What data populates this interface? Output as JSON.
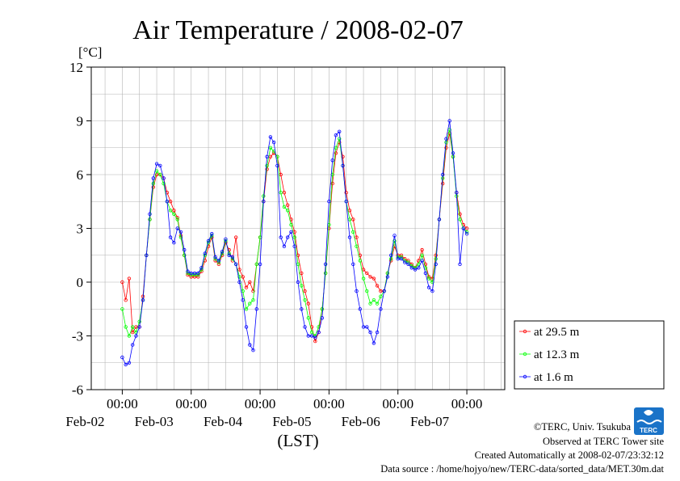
{
  "chart_data": {
    "type": "line",
    "title": "Air Temperature / 2008-02-07",
    "ylabel": "[°C]",
    "xlabel": "(LST)",
    "ylim": [
      -6,
      12
    ],
    "xlim": [
      0,
      6
    ],
    "yticks": [
      -6,
      -3,
      0,
      3,
      6,
      9,
      12
    ],
    "x_ticks": [
      {
        "x": 1,
        "time": "00:00",
        "date": "Feb-02"
      },
      {
        "x": 2,
        "time": "00:00",
        "date": "Feb-03"
      },
      {
        "x": 3,
        "time": "00:00",
        "date": "Feb-04"
      },
      {
        "x": 4,
        "time": "00:00",
        "date": "Feb-05"
      },
      {
        "x": 5,
        "time": "00:00",
        "date": "Feb-06"
      },
      {
        "x": 6,
        "time": "00:00",
        "date": "Feb-07"
      }
    ],
    "x_unit": "days from 2008-02-01 00:00 LST",
    "grid": true,
    "legend_position": "right",
    "series": [
      {
        "name": "at 29.5 m",
        "color": "#ff0000",
        "points": [
          [
            0.0,
            0.0
          ],
          [
            0.05,
            -1.0
          ],
          [
            0.1,
            0.2
          ],
          [
            0.15,
            -2.8
          ],
          [
            0.2,
            -2.5
          ],
          [
            0.25,
            -2.5
          ],
          [
            0.3,
            -0.8
          ],
          [
            0.35,
            1.5
          ],
          [
            0.4,
            3.5
          ],
          [
            0.45,
            5.3
          ],
          [
            0.5,
            6.0
          ],
          [
            0.55,
            6.0
          ],
          [
            0.6,
            5.8
          ],
          [
            0.65,
            5.0
          ],
          [
            0.7,
            4.5
          ],
          [
            0.75,
            4.0
          ],
          [
            0.8,
            3.6
          ],
          [
            0.85,
            2.6
          ],
          [
            0.9,
            1.5
          ],
          [
            0.95,
            0.4
          ],
          [
            1.0,
            0.3
          ],
          [
            1.05,
            0.3
          ],
          [
            1.1,
            0.3
          ],
          [
            1.15,
            0.6
          ],
          [
            1.2,
            1.2
          ],
          [
            1.25,
            2.0
          ],
          [
            1.3,
            2.5
          ],
          [
            1.35,
            1.2
          ],
          [
            1.4,
            1.0
          ],
          [
            1.45,
            1.5
          ],
          [
            1.5,
            2.2
          ],
          [
            1.55,
            1.8
          ],
          [
            1.6,
            1.2
          ],
          [
            1.65,
            2.5
          ],
          [
            1.7,
            0.7
          ],
          [
            1.75,
            0.3
          ],
          [
            1.8,
            -0.3
          ],
          [
            1.85,
            0.0
          ],
          [
            1.9,
            -0.5
          ],
          [
            1.95,
            1.0
          ],
          [
            2.0,
            2.5
          ],
          [
            2.05,
            4.5
          ],
          [
            2.1,
            6.3
          ],
          [
            2.15,
            7.0
          ],
          [
            2.2,
            7.2
          ],
          [
            2.25,
            7.0
          ],
          [
            2.3,
            6.0
          ],
          [
            2.35,
            5.0
          ],
          [
            2.4,
            4.3
          ],
          [
            2.45,
            3.5
          ],
          [
            2.5,
            2.8
          ],
          [
            2.55,
            1.5
          ],
          [
            2.6,
            0.5
          ],
          [
            2.65,
            -0.5
          ],
          [
            2.7,
            -1.2
          ],
          [
            2.75,
            -2.5
          ],
          [
            2.8,
            -3.3
          ],
          [
            2.85,
            -2.8
          ],
          [
            2.9,
            -1.5
          ],
          [
            2.95,
            0.5
          ],
          [
            3.0,
            3.0
          ],
          [
            3.05,
            5.5
          ],
          [
            3.1,
            7.2
          ],
          [
            3.15,
            7.8
          ],
          [
            3.2,
            7.0
          ],
          [
            3.25,
            5.0
          ],
          [
            3.3,
            4.0
          ],
          [
            3.35,
            3.5
          ],
          [
            3.4,
            2.5
          ],
          [
            3.45,
            1.5
          ],
          [
            3.5,
            0.7
          ],
          [
            3.55,
            0.5
          ],
          [
            3.6,
            0.3
          ],
          [
            3.65,
            0.2
          ],
          [
            3.7,
            -0.2
          ],
          [
            3.75,
            -0.5
          ],
          [
            3.8,
            -0.5
          ],
          [
            3.85,
            0.5
          ],
          [
            3.9,
            1.2
          ],
          [
            3.95,
            2.0
          ],
          [
            4.0,
            1.5
          ],
          [
            4.05,
            1.5
          ],
          [
            4.1,
            1.3
          ],
          [
            4.15,
            1.2
          ],
          [
            4.2,
            1.0
          ],
          [
            4.25,
            0.8
          ],
          [
            4.3,
            1.2
          ],
          [
            4.35,
            1.8
          ],
          [
            4.4,
            1.0
          ],
          [
            4.45,
            0.3
          ],
          [
            4.5,
            0.2
          ],
          [
            4.55,
            1.5
          ],
          [
            4.6,
            3.5
          ],
          [
            4.65,
            5.5
          ],
          [
            4.7,
            7.5
          ],
          [
            4.75,
            8.3
          ],
          [
            4.8,
            7.0
          ],
          [
            4.85,
            5.0
          ],
          [
            4.9,
            3.8
          ],
          [
            4.95,
            3.2
          ],
          [
            5.0,
            3.0
          ]
        ]
      },
      {
        "name": "at 12.3 m",
        "color": "#00ff00",
        "points": [
          [
            0.0,
            -1.5
          ],
          [
            0.05,
            -2.5
          ],
          [
            0.1,
            -3.0
          ],
          [
            0.15,
            -2.5
          ],
          [
            0.2,
            -2.8
          ],
          [
            0.25,
            -2.2
          ],
          [
            0.3,
            -1.0
          ],
          [
            0.35,
            1.5
          ],
          [
            0.4,
            3.5
          ],
          [
            0.45,
            5.5
          ],
          [
            0.5,
            6.2
          ],
          [
            0.55,
            6.0
          ],
          [
            0.6,
            5.5
          ],
          [
            0.65,
            4.5
          ],
          [
            0.7,
            4.0
          ],
          [
            0.75,
            3.8
          ],
          [
            0.8,
            3.5
          ],
          [
            0.85,
            2.5
          ],
          [
            0.9,
            1.5
          ],
          [
            0.95,
            0.5
          ],
          [
            1.0,
            0.4
          ],
          [
            1.05,
            0.4
          ],
          [
            1.1,
            0.4
          ],
          [
            1.15,
            0.7
          ],
          [
            1.2,
            1.5
          ],
          [
            1.25,
            2.2
          ],
          [
            1.3,
            2.6
          ],
          [
            1.35,
            1.3
          ],
          [
            1.4,
            1.1
          ],
          [
            1.45,
            1.6
          ],
          [
            1.5,
            2.3
          ],
          [
            1.55,
            1.6
          ],
          [
            1.6,
            1.3
          ],
          [
            1.65,
            1.0
          ],
          [
            1.7,
            0.3
          ],
          [
            1.75,
            -0.5
          ],
          [
            1.8,
            -1.5
          ],
          [
            1.85,
            -1.2
          ],
          [
            1.9,
            -1.0
          ],
          [
            1.95,
            1.0
          ],
          [
            2.0,
            2.5
          ],
          [
            2.05,
            4.8
          ],
          [
            2.1,
            6.5
          ],
          [
            2.15,
            7.5
          ],
          [
            2.2,
            7.3
          ],
          [
            2.25,
            7.0
          ],
          [
            2.3,
            5.0
          ],
          [
            2.35,
            4.2
          ],
          [
            2.4,
            4.0
          ],
          [
            2.45,
            3.2
          ],
          [
            2.5,
            2.5
          ],
          [
            2.55,
            1.0
          ],
          [
            2.6,
            -0.2
          ],
          [
            2.65,
            -1.0
          ],
          [
            2.7,
            -2.0
          ],
          [
            2.75,
            -2.8
          ],
          [
            2.8,
            -3.0
          ],
          [
            2.85,
            -2.5
          ],
          [
            2.9,
            -1.5
          ],
          [
            2.95,
            0.5
          ],
          [
            3.0,
            3.2
          ],
          [
            3.05,
            6.0
          ],
          [
            3.1,
            7.5
          ],
          [
            3.15,
            8.0
          ],
          [
            3.2,
            6.5
          ],
          [
            3.25,
            4.5
          ],
          [
            3.3,
            3.5
          ],
          [
            3.35,
            2.8
          ],
          [
            3.4,
            2.0
          ],
          [
            3.45,
            1.2
          ],
          [
            3.5,
            0.2
          ],
          [
            3.55,
            -0.5
          ],
          [
            3.6,
            -1.2
          ],
          [
            3.65,
            -1.0
          ],
          [
            3.7,
            -1.2
          ],
          [
            3.75,
            -0.8
          ],
          [
            3.8,
            -0.5
          ],
          [
            3.85,
            0.5
          ],
          [
            3.9,
            1.3
          ],
          [
            3.95,
            2.3
          ],
          [
            4.0,
            1.4
          ],
          [
            4.05,
            1.4
          ],
          [
            4.1,
            1.2
          ],
          [
            4.15,
            1.1
          ],
          [
            4.2,
            0.9
          ],
          [
            4.25,
            0.8
          ],
          [
            4.3,
            1.0
          ],
          [
            4.35,
            1.5
          ],
          [
            4.4,
            0.8
          ],
          [
            4.45,
            0.2
          ],
          [
            4.5,
            0.0
          ],
          [
            4.55,
            1.3
          ],
          [
            4.6,
            3.5
          ],
          [
            4.65,
            5.8
          ],
          [
            4.7,
            7.8
          ],
          [
            4.75,
            8.5
          ],
          [
            4.8,
            7.0
          ],
          [
            4.85,
            4.8
          ],
          [
            4.9,
            3.5
          ],
          [
            4.95,
            3.0
          ],
          [
            5.0,
            2.8
          ]
        ]
      },
      {
        "name": "at 1.6 m",
        "color": "#0000ff",
        "points": [
          [
            0.0,
            -4.2
          ],
          [
            0.05,
            -4.6
          ],
          [
            0.1,
            -4.5
          ],
          [
            0.15,
            -3.5
          ],
          [
            0.2,
            -3.0
          ],
          [
            0.25,
            -2.5
          ],
          [
            0.3,
            -1.0
          ],
          [
            0.35,
            1.5
          ],
          [
            0.4,
            3.8
          ],
          [
            0.45,
            5.8
          ],
          [
            0.5,
            6.6
          ],
          [
            0.55,
            6.5
          ],
          [
            0.6,
            5.8
          ],
          [
            0.65,
            4.5
          ],
          [
            0.7,
            2.5
          ],
          [
            0.75,
            2.2
          ],
          [
            0.8,
            3.0
          ],
          [
            0.85,
            2.8
          ],
          [
            0.9,
            1.8
          ],
          [
            0.95,
            0.6
          ],
          [
            1.0,
            0.5
          ],
          [
            1.05,
            0.5
          ],
          [
            1.1,
            0.5
          ],
          [
            1.15,
            0.8
          ],
          [
            1.2,
            1.6
          ],
          [
            1.25,
            2.3
          ],
          [
            1.3,
            2.7
          ],
          [
            1.35,
            1.4
          ],
          [
            1.4,
            1.2
          ],
          [
            1.45,
            1.7
          ],
          [
            1.5,
            2.4
          ],
          [
            1.55,
            1.5
          ],
          [
            1.6,
            1.4
          ],
          [
            1.65,
            1.0
          ],
          [
            1.7,
            0.0
          ],
          [
            1.75,
            -1.0
          ],
          [
            1.8,
            -2.5
          ],
          [
            1.85,
            -3.5
          ],
          [
            1.9,
            -3.8
          ],
          [
            1.95,
            -1.5
          ],
          [
            2.0,
            1.0
          ],
          [
            2.05,
            4.5
          ],
          [
            2.1,
            7.0
          ],
          [
            2.15,
            8.1
          ],
          [
            2.2,
            7.8
          ],
          [
            2.25,
            6.5
          ],
          [
            2.3,
            2.5
          ],
          [
            2.35,
            2.0
          ],
          [
            2.4,
            2.5
          ],
          [
            2.45,
            2.8
          ],
          [
            2.5,
            2.0
          ],
          [
            2.55,
            0.0
          ],
          [
            2.6,
            -1.5
          ],
          [
            2.65,
            -2.5
          ],
          [
            2.7,
            -3.0
          ],
          [
            2.75,
            -3.0
          ],
          [
            2.8,
            -3.1
          ],
          [
            2.85,
            -2.8
          ],
          [
            2.9,
            -2.0
          ],
          [
            2.95,
            1.0
          ],
          [
            3.0,
            4.5
          ],
          [
            3.05,
            6.8
          ],
          [
            3.1,
            8.2
          ],
          [
            3.15,
            8.4
          ],
          [
            3.2,
            6.5
          ],
          [
            3.25,
            4.5
          ],
          [
            3.3,
            2.5
          ],
          [
            3.35,
            1.0
          ],
          [
            3.4,
            -0.5
          ],
          [
            3.45,
            -1.5
          ],
          [
            3.5,
            -2.5
          ],
          [
            3.55,
            -2.5
          ],
          [
            3.6,
            -2.8
          ],
          [
            3.65,
            -3.4
          ],
          [
            3.7,
            -2.8
          ],
          [
            3.75,
            -1.5
          ],
          [
            3.8,
            -0.5
          ],
          [
            3.85,
            0.3
          ],
          [
            3.9,
            1.5
          ],
          [
            3.95,
            2.6
          ],
          [
            4.0,
            1.3
          ],
          [
            4.05,
            1.3
          ],
          [
            4.1,
            1.1
          ],
          [
            4.15,
            1.0
          ],
          [
            4.2,
            0.8
          ],
          [
            4.25,
            0.7
          ],
          [
            4.3,
            0.8
          ],
          [
            4.35,
            1.2
          ],
          [
            4.4,
            0.5
          ],
          [
            4.45,
            -0.3
          ],
          [
            4.5,
            -0.5
          ],
          [
            4.55,
            1.0
          ],
          [
            4.6,
            3.5
          ],
          [
            4.65,
            6.0
          ],
          [
            4.7,
            8.0
          ],
          [
            4.75,
            9.0
          ],
          [
            4.8,
            7.2
          ],
          [
            4.85,
            5.0
          ],
          [
            4.9,
            1.0
          ],
          [
            4.95,
            3.0
          ],
          [
            5.0,
            2.7
          ]
        ]
      }
    ]
  },
  "footer": {
    "copyright": "©TERC, Univ. Tsukuba",
    "observed": "Observed at TERC Tower site",
    "created": "Created Automatically at 2008-02-07/23:32:12",
    "source": "Data source : /home/hojyo/new/TERC-data/sorted_data/MET.30m.dat",
    "logo_text": "TERC"
  },
  "colors": {
    "grid": "#b4b4b4",
    "frame": "#000000"
  }
}
